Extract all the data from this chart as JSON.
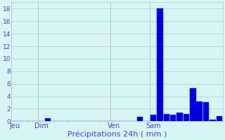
{
  "title": "",
  "xlabel": "Précipitations 24h ( mm )",
  "background_color": "#d8f5f5",
  "bar_color": "#0000dd",
  "bar_edge_color": "#0000ff",
  "grid_color": "#b0c8c8",
  "text_color": "#4444bb",
  "ylim": [
    0,
    19
  ],
  "yticks": [
    0,
    2,
    4,
    6,
    8,
    10,
    12,
    14,
    16,
    18
  ],
  "bar_values": [
    0,
    0,
    0,
    0,
    0,
    0.5,
    0,
    0,
    0,
    0,
    0,
    0,
    0,
    0,
    0,
    0,
    0,
    0,
    0,
    0.7,
    0,
    1.0,
    18.0,
    1.2,
    1.0,
    1.4,
    1.2,
    5.3,
    3.2,
    3.0,
    0.3,
    0.8
  ],
  "day_ticks": [
    0,
    4,
    15,
    21
  ],
  "day_labels": [
    "Jeu",
    "Dim",
    "Ven",
    "Sam"
  ],
  "day_vlines": [
    0,
    4,
    15,
    21
  ]
}
